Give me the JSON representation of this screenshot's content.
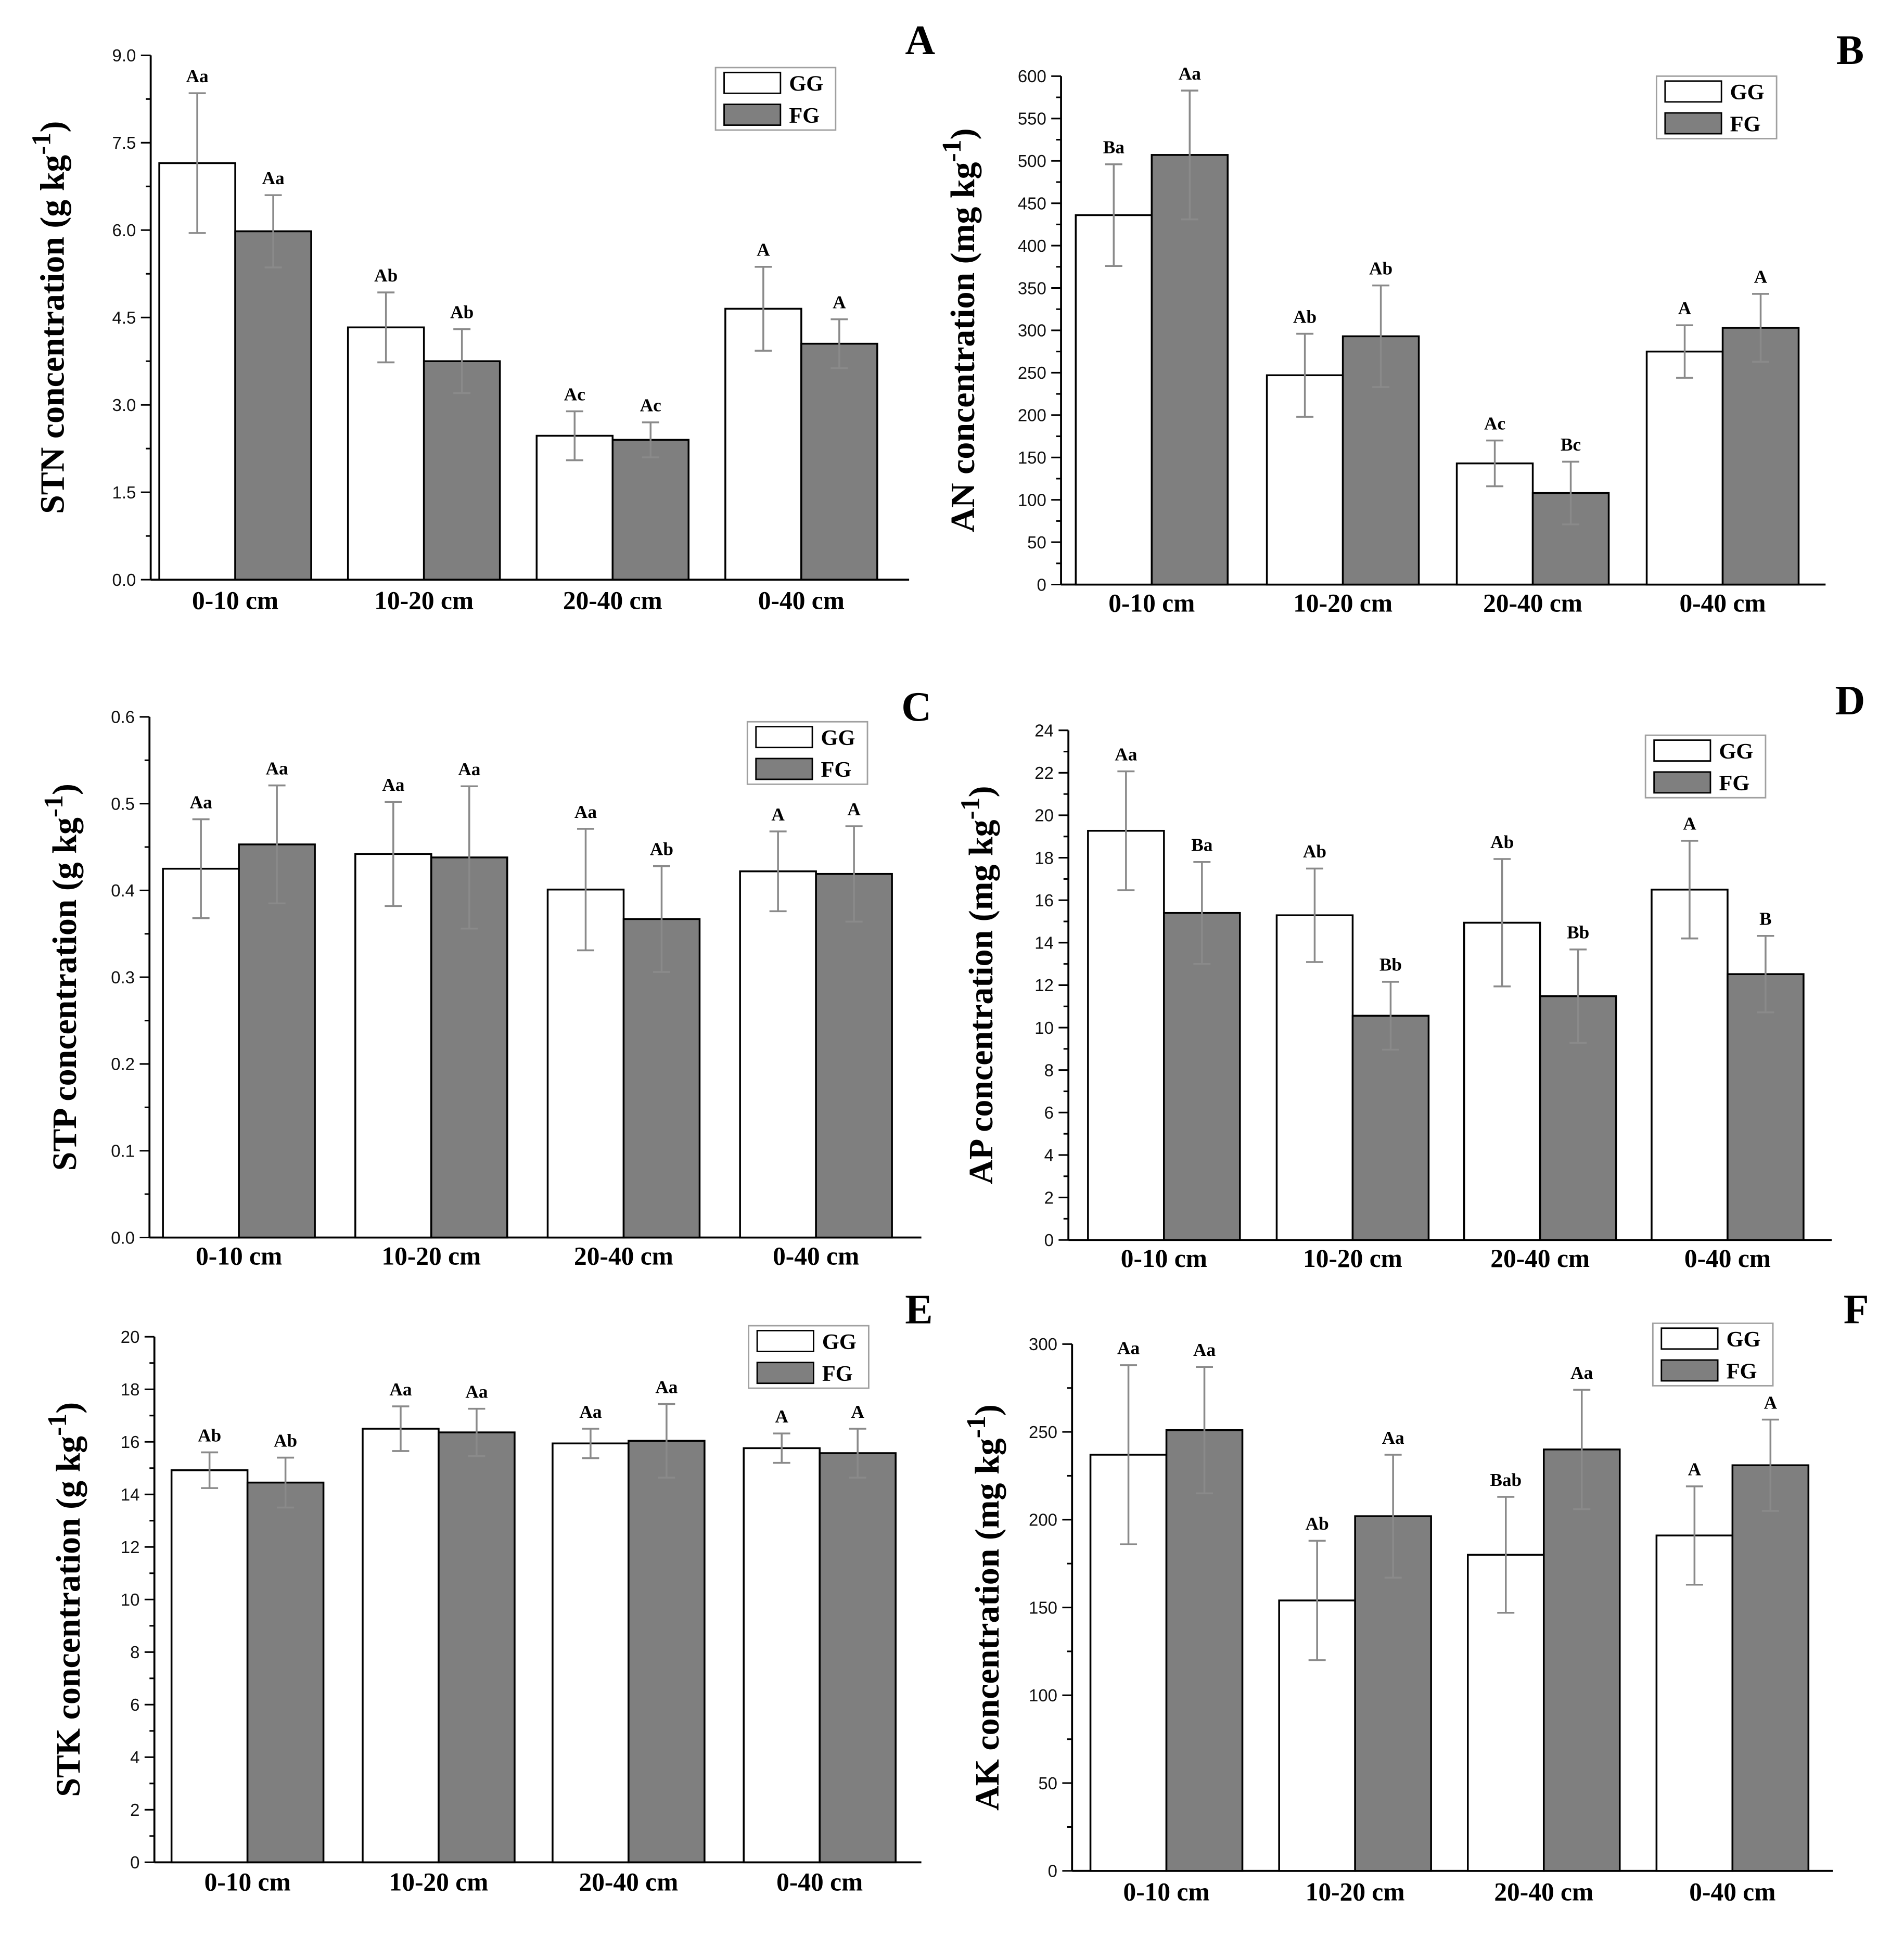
{
  "colors": {
    "GG": "#ffffff",
    "FG": "#7f7f7f",
    "error_bar": "#8a8a8a"
  },
  "chart_data": [
    {
      "panel": "A",
      "type": "bar",
      "categories": [
        "0-10 cm",
        "10-20 cm",
        "20-40 cm",
        "0-40 cm"
      ],
      "ylabel": {
        "text": "STN concentration (g kg",
        "sup": "-1",
        "close": ")"
      },
      "ylim": [
        0,
        9
      ],
      "yticks": [
        "0.0",
        "1.5",
        "3.0",
        "4.5",
        "6.0",
        "7.5",
        "9.0"
      ],
      "legend_position": "top-right",
      "series": [
        {
          "name": "GG",
          "values": [
            7.15,
            4.33,
            2.47,
            4.65
          ],
          "errors": [
            1.2,
            0.6,
            0.42,
            0.72
          ],
          "labels": [
            "Aa",
            "Ab",
            "Ac",
            "A"
          ]
        },
        {
          "name": "FG",
          "values": [
            5.98,
            3.75,
            2.4,
            4.05
          ],
          "errors": [
            0.62,
            0.55,
            0.3,
            0.42
          ],
          "labels": [
            "Aa",
            "Ab",
            "Ac",
            "A"
          ]
        }
      ]
    },
    {
      "panel": "B",
      "type": "bar",
      "categories": [
        "0-10 cm",
        "10-20 cm",
        "20-40 cm",
        "0-40 cm"
      ],
      "ylabel": {
        "text": "AN concentration (mg kg",
        "sup": "-1",
        "close": ")"
      },
      "ylim": [
        0,
        600
      ],
      "yticks": [
        "0",
        "50",
        "100",
        "150",
        "200",
        "250",
        "300",
        "350",
        "400",
        "450",
        "500",
        "550",
        "600"
      ],
      "legend_position": "top-right",
      "series": [
        {
          "name": "GG",
          "values": [
            436,
            247,
            143,
            275
          ],
          "errors": [
            60,
            49,
            27,
            31
          ],
          "labels": [
            "Ba",
            "Ab",
            "Ac",
            "A"
          ]
        },
        {
          "name": "FG",
          "values": [
            507,
            293,
            108,
            303
          ],
          "errors": [
            76,
            60,
            37,
            40
          ],
          "labels": [
            "Aa",
            "Ab",
            "Bc",
            "A"
          ]
        }
      ]
    },
    {
      "panel": "C",
      "type": "bar",
      "categories": [
        "0-10 cm",
        "10-20 cm",
        "20-40 cm",
        "0-40 cm"
      ],
      "ylabel": {
        "text": "STP concentration (g kg",
        "sup": "-1",
        "close": ")"
      },
      "ylim": [
        0,
        0.6
      ],
      "yticks": [
        "0.0",
        "0.1",
        "0.2",
        "0.3",
        "0.4",
        "0.5",
        "0.6"
      ],
      "legend_position": "top-right",
      "series": [
        {
          "name": "GG",
          "values": [
            0.425,
            0.442,
            0.401,
            0.422
          ],
          "errors": [
            0.057,
            0.06,
            0.07,
            0.046
          ],
          "labels": [
            "Aa",
            "Aa",
            "Aa",
            "A"
          ]
        },
        {
          "name": "FG",
          "values": [
            0.453,
            0.438,
            0.367,
            0.419
          ],
          "errors": [
            0.068,
            0.082,
            0.061,
            0.055
          ],
          "labels": [
            "Aa",
            "Aa",
            "Ab",
            "A"
          ]
        }
      ]
    },
    {
      "panel": "D",
      "type": "bar",
      "categories": [
        "0-10 cm",
        "10-20 cm",
        "20-40 cm",
        "0-40 cm"
      ],
      "ylabel": {
        "text": "AP concentration (mg kg",
        "sup": "-1",
        "close": ")"
      },
      "ylim": [
        0,
        24
      ],
      "yticks": [
        "0",
        "2",
        "4",
        "6",
        "8",
        "10",
        "12",
        "14",
        "16",
        "18",
        "20",
        "22",
        "24"
      ],
      "legend_position": "top-right",
      "series": [
        {
          "name": "GG",
          "values": [
            19.27,
            15.29,
            14.94,
            16.5
          ],
          "errors": [
            2.8,
            2.2,
            3.0,
            2.3
          ],
          "labels": [
            "Aa",
            "Ab",
            "Ab",
            "A"
          ]
        },
        {
          "name": "FG",
          "values": [
            15.4,
            10.56,
            11.48,
            12.52
          ],
          "errors": [
            2.4,
            1.6,
            2.2,
            1.8
          ],
          "labels": [
            "Ba",
            "Bb",
            "Bb",
            "B"
          ]
        }
      ]
    },
    {
      "panel": "E",
      "type": "bar",
      "categories": [
        "0-10 cm",
        "10-20 cm",
        "20-40 cm",
        "0-40 cm"
      ],
      "ylabel": {
        "text": "STK concentration (g kg",
        "sup": "-1",
        "close": ")"
      },
      "ylim": [
        0,
        20
      ],
      "yticks": [
        "0",
        "2",
        "4",
        "6",
        "8",
        "10",
        "12",
        "14",
        "16",
        "18",
        "20"
      ],
      "legend_position": "top-right",
      "series": [
        {
          "name": "GG",
          "values": [
            14.92,
            16.5,
            15.94,
            15.76
          ],
          "errors": [
            0.68,
            0.85,
            0.56,
            0.56
          ],
          "labels": [
            "Ab",
            "Aa",
            "Aa",
            "A"
          ]
        },
        {
          "name": "FG",
          "values": [
            14.45,
            16.36,
            16.04,
            15.57
          ],
          "errors": [
            0.95,
            0.9,
            1.4,
            0.93
          ],
          "labels": [
            "Ab",
            "Aa",
            "Aa",
            "A"
          ]
        }
      ]
    },
    {
      "panel": "F",
      "type": "bar",
      "categories": [
        "0-10 cm",
        "10-20 cm",
        "20-40 cm",
        "0-40 cm"
      ],
      "ylabel": {
        "text": "AK concentration (mg kg",
        "sup": "-1",
        "close": ")"
      },
      "ylim": [
        0,
        300
      ],
      "yticks": [
        "0",
        "50",
        "100",
        "150",
        "200",
        "250",
        "300"
      ],
      "legend_position": "top-right",
      "series": [
        {
          "name": "GG",
          "values": [
            237,
            154,
            180,
            191
          ],
          "errors": [
            51,
            34,
            33,
            28
          ],
          "labels": [
            "Aa",
            "Ab",
            "Bab",
            "A"
          ]
        },
        {
          "name": "FG",
          "values": [
            251,
            202,
            240,
            231
          ],
          "errors": [
            36,
            35,
            34,
            26
          ],
          "labels": [
            "Aa",
            "Aa",
            "Aa",
            "A"
          ]
        }
      ]
    }
  ]
}
